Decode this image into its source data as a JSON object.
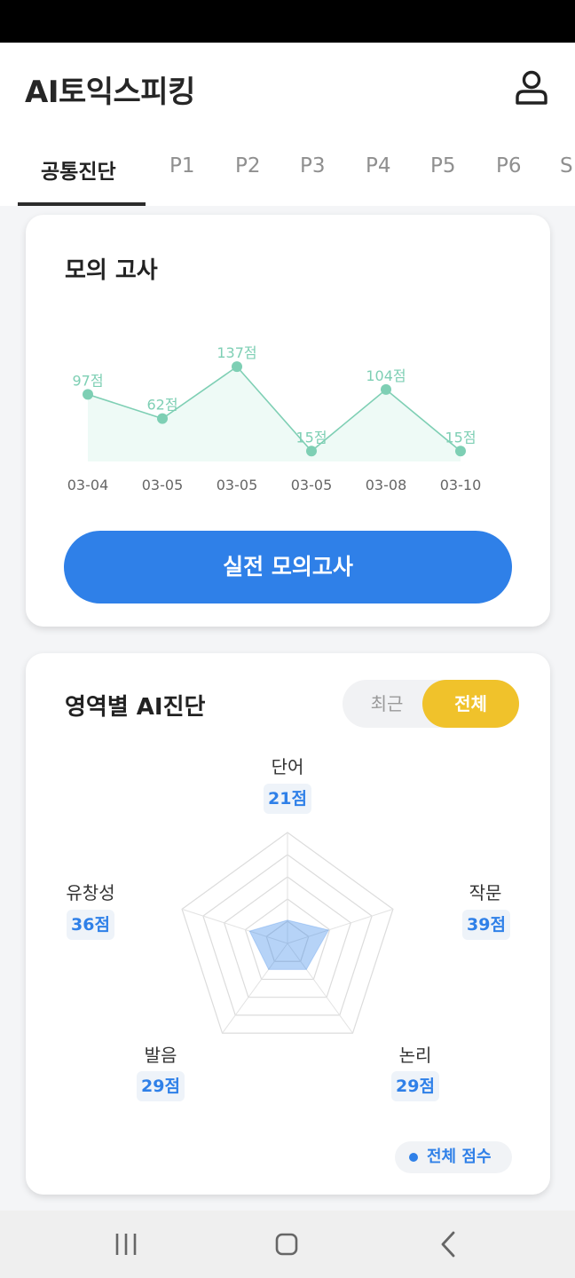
{
  "app": {
    "title": "AI토익스피킹"
  },
  "tabs": [
    "공통진단",
    "P1",
    "P2",
    "P3",
    "P4",
    "P5",
    "P6",
    "S"
  ],
  "mock_exam": {
    "title": "모의 고사",
    "button_label": "실전 모의고사",
    "chart_data": {
      "type": "area",
      "categories": [
        "03-04",
        "03-05",
        "03-05",
        "03-05",
        "03-08",
        "03-10"
      ],
      "values": [
        97,
        62,
        137,
        15,
        104,
        15
      ],
      "value_labels": [
        "97점",
        "62점",
        "137점",
        "15점",
        "104점",
        "15점"
      ],
      "ylim": [
        0,
        200
      ],
      "grid": false,
      "color": "#7ecfb4",
      "fill": "#eefaf6"
    }
  },
  "diagnosis": {
    "title": "영역별 AI진단",
    "toggle": {
      "recent": "최근",
      "all": "전체",
      "selected": "all"
    },
    "chart_data": {
      "type": "radar",
      "axes": [
        "단어",
        "작문",
        "논리",
        "발음",
        "유창성"
      ],
      "values": [
        21,
        39,
        29,
        29,
        36
      ],
      "score_labels": [
        "21점",
        "39점",
        "29점",
        "29점",
        "36점"
      ],
      "max": 100,
      "rings": 5,
      "fill": "#2f80e8"
    },
    "legend": "전체 점수"
  },
  "colors": {
    "accent_blue": "#2f80e8",
    "toggle_yellow": "#f0c22b",
    "line_teal": "#7ecfb4"
  },
  "icons": {
    "profile": "user-icon",
    "nav_recent": "recent-apps-icon",
    "nav_home": "home-icon",
    "nav_back": "back-icon"
  }
}
